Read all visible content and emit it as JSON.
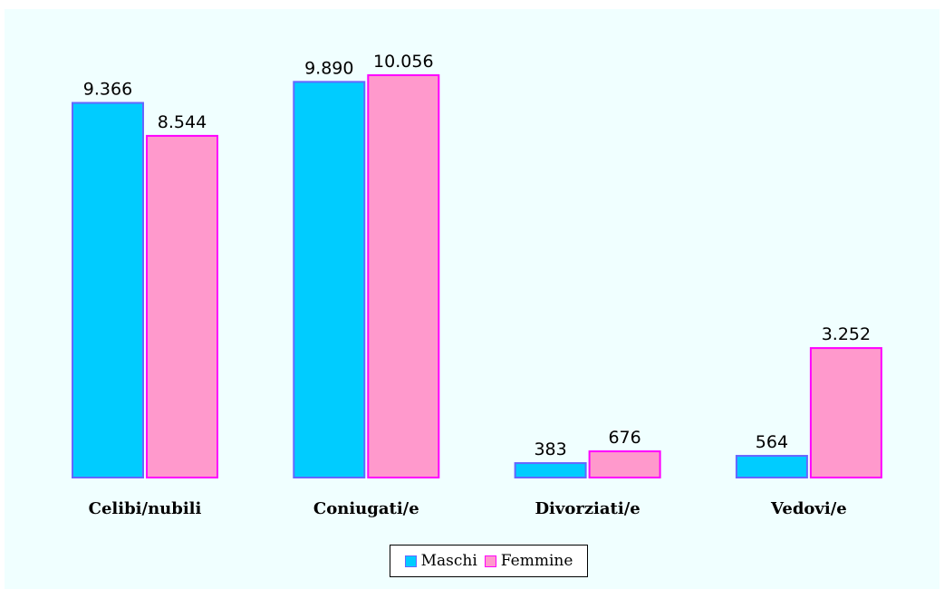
{
  "chart_data": {
    "type": "bar",
    "categories": [
      "Celibi/nubili",
      "Coniugati/e",
      "Divorziati/e",
      "Vedovi/e"
    ],
    "series": [
      {
        "name": "Maschi",
        "values": [
          9366,
          9890,
          383,
          564
        ],
        "labels": [
          "9.366",
          "9.890",
          "383",
          "564"
        ],
        "color": "#00CCFF",
        "border": "#6666FF"
      },
      {
        "name": "Femmine",
        "values": [
          8544,
          10056,
          676,
          3252
        ],
        "labels": [
          "8.544",
          "10.056",
          "676",
          "3.252"
        ],
        "color": "#FF99CC",
        "border": "#FF00FF"
      }
    ],
    "ylim": [
      0,
      10056
    ],
    "grid": false,
    "legend": "bottom-center",
    "plot_background": "#F0FFFF"
  }
}
